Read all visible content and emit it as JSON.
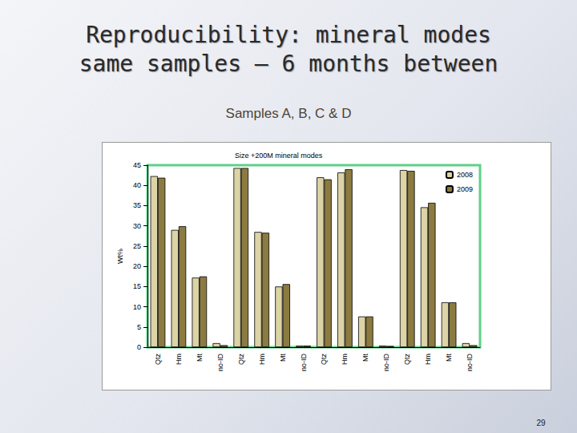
{
  "slide": {
    "title": [
      "Reproducibility: mineral modes",
      "same samples – 6 months between"
    ],
    "subtitle": "Samples A, B, C & D",
    "page_number": "29"
  },
  "chart_data": {
    "type": "bar",
    "title": "Size +200M mineral modes",
    "y_label": "Wt%",
    "categories": [
      "Qtz",
      "Hm",
      "Mt",
      "no-ID",
      "Qtz",
      "Hm",
      "Mt",
      "no-ID",
      "Qtz",
      "Hm",
      "Mt",
      "no-ID",
      "Qtz",
      "Hm",
      "Mt",
      "no-ID"
    ],
    "series": [
      {
        "name": "2008",
        "color": "#dcd3a6",
        "values": [
          42.3,
          29.0,
          17.2,
          1.0,
          44.3,
          28.5,
          15.0,
          0.4,
          42.0,
          43.2,
          7.6,
          0.4,
          43.8,
          34.6,
          11.1,
          1.0
        ]
      },
      {
        "name": "2009",
        "color": "#8c7b40",
        "values": [
          41.9,
          29.9,
          17.5,
          0.5,
          44.3,
          28.3,
          15.6,
          0.4,
          41.5,
          44.0,
          7.6,
          0.3,
          43.6,
          35.7,
          11.1,
          0.5
        ]
      }
    ],
    "ylim": [
      0,
      45
    ],
    "yticks": [
      0,
      5,
      10,
      15,
      20,
      25,
      30,
      35,
      40,
      45
    ],
    "grid": false,
    "legend": "top-right"
  }
}
